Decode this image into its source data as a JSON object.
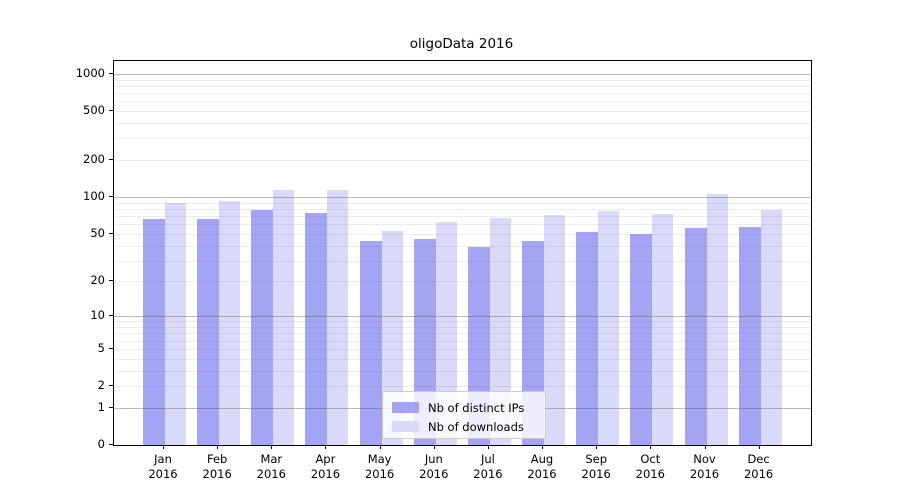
{
  "title": "oligoData 2016",
  "chart_data": {
    "type": "bar",
    "title": "oligoData 2016",
    "categories": [
      "Jan",
      "Feb",
      "Mar",
      "Apr",
      "May",
      "Jun",
      "Jul",
      "Aug",
      "Sep",
      "Oct",
      "Nov",
      "Dec"
    ],
    "year_label": "2016",
    "series": [
      {
        "name": "Nb of distinct IPs",
        "color": "#a4a4f4",
        "values": [
          66,
          66,
          78,
          74,
          44,
          45,
          39,
          44,
          52,
          50,
          56,
          57
        ]
      },
      {
        "name": "Nb of downloads",
        "color": "#d9d9f9",
        "values": [
          90,
          93,
          115,
          114,
          53,
          63,
          68,
          71,
          77,
          73,
          107,
          79
        ]
      }
    ],
    "y_ticks": [
      0,
      1,
      2,
      5,
      10,
      20,
      50,
      100,
      200,
      500,
      1000
    ],
    "y_major_gridlines": [
      1,
      10,
      100,
      1000
    ],
    "y_scale": "log10(1+y)",
    "ylim": [
      0,
      1270
    ],
    "grid": true,
    "legend_position": "lower center"
  }
}
